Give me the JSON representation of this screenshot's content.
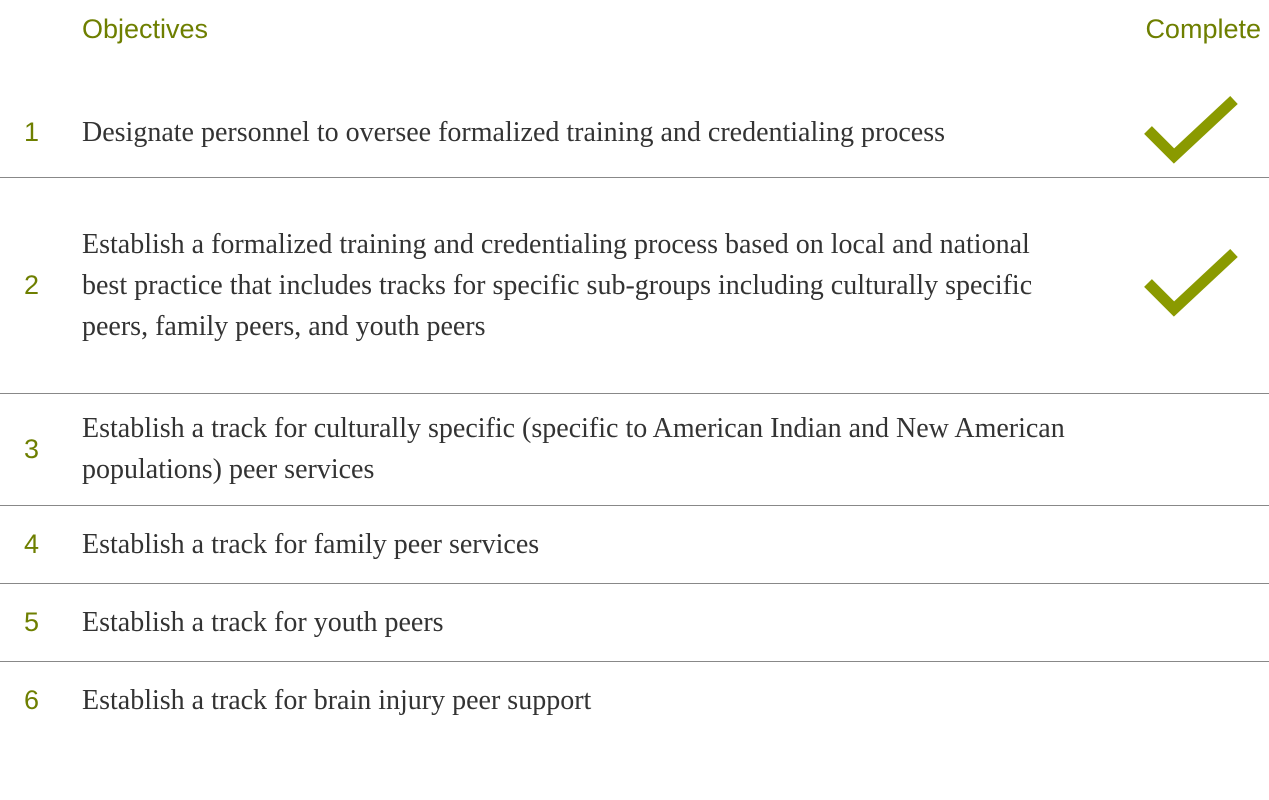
{
  "header": {
    "objectives": "Objectives",
    "complete": "Complete"
  },
  "rows": [
    {
      "number": "1",
      "text": "Designate personnel to oversee formalized training and credentialing process",
      "complete": true
    },
    {
      "number": "2",
      "text": "Establish a formalized training and credentialing process based on local and national best practice that includes tracks for specific sub-groups including culturally specific peers, family peers, and youth peers",
      "complete": true
    },
    {
      "number": "3",
      "text": "Establish a track for culturally specific (specific to American Indian and New American populations) peer services",
      "complete": false
    },
    {
      "number": "4",
      "text": "Establish a track for family peer services",
      "complete": false
    },
    {
      "number": "5",
      "text": "Establish a track for youth peers",
      "complete": false
    },
    {
      "number": "6",
      "text": "Establish a track for brain injury peer support",
      "complete": false
    }
  ]
}
